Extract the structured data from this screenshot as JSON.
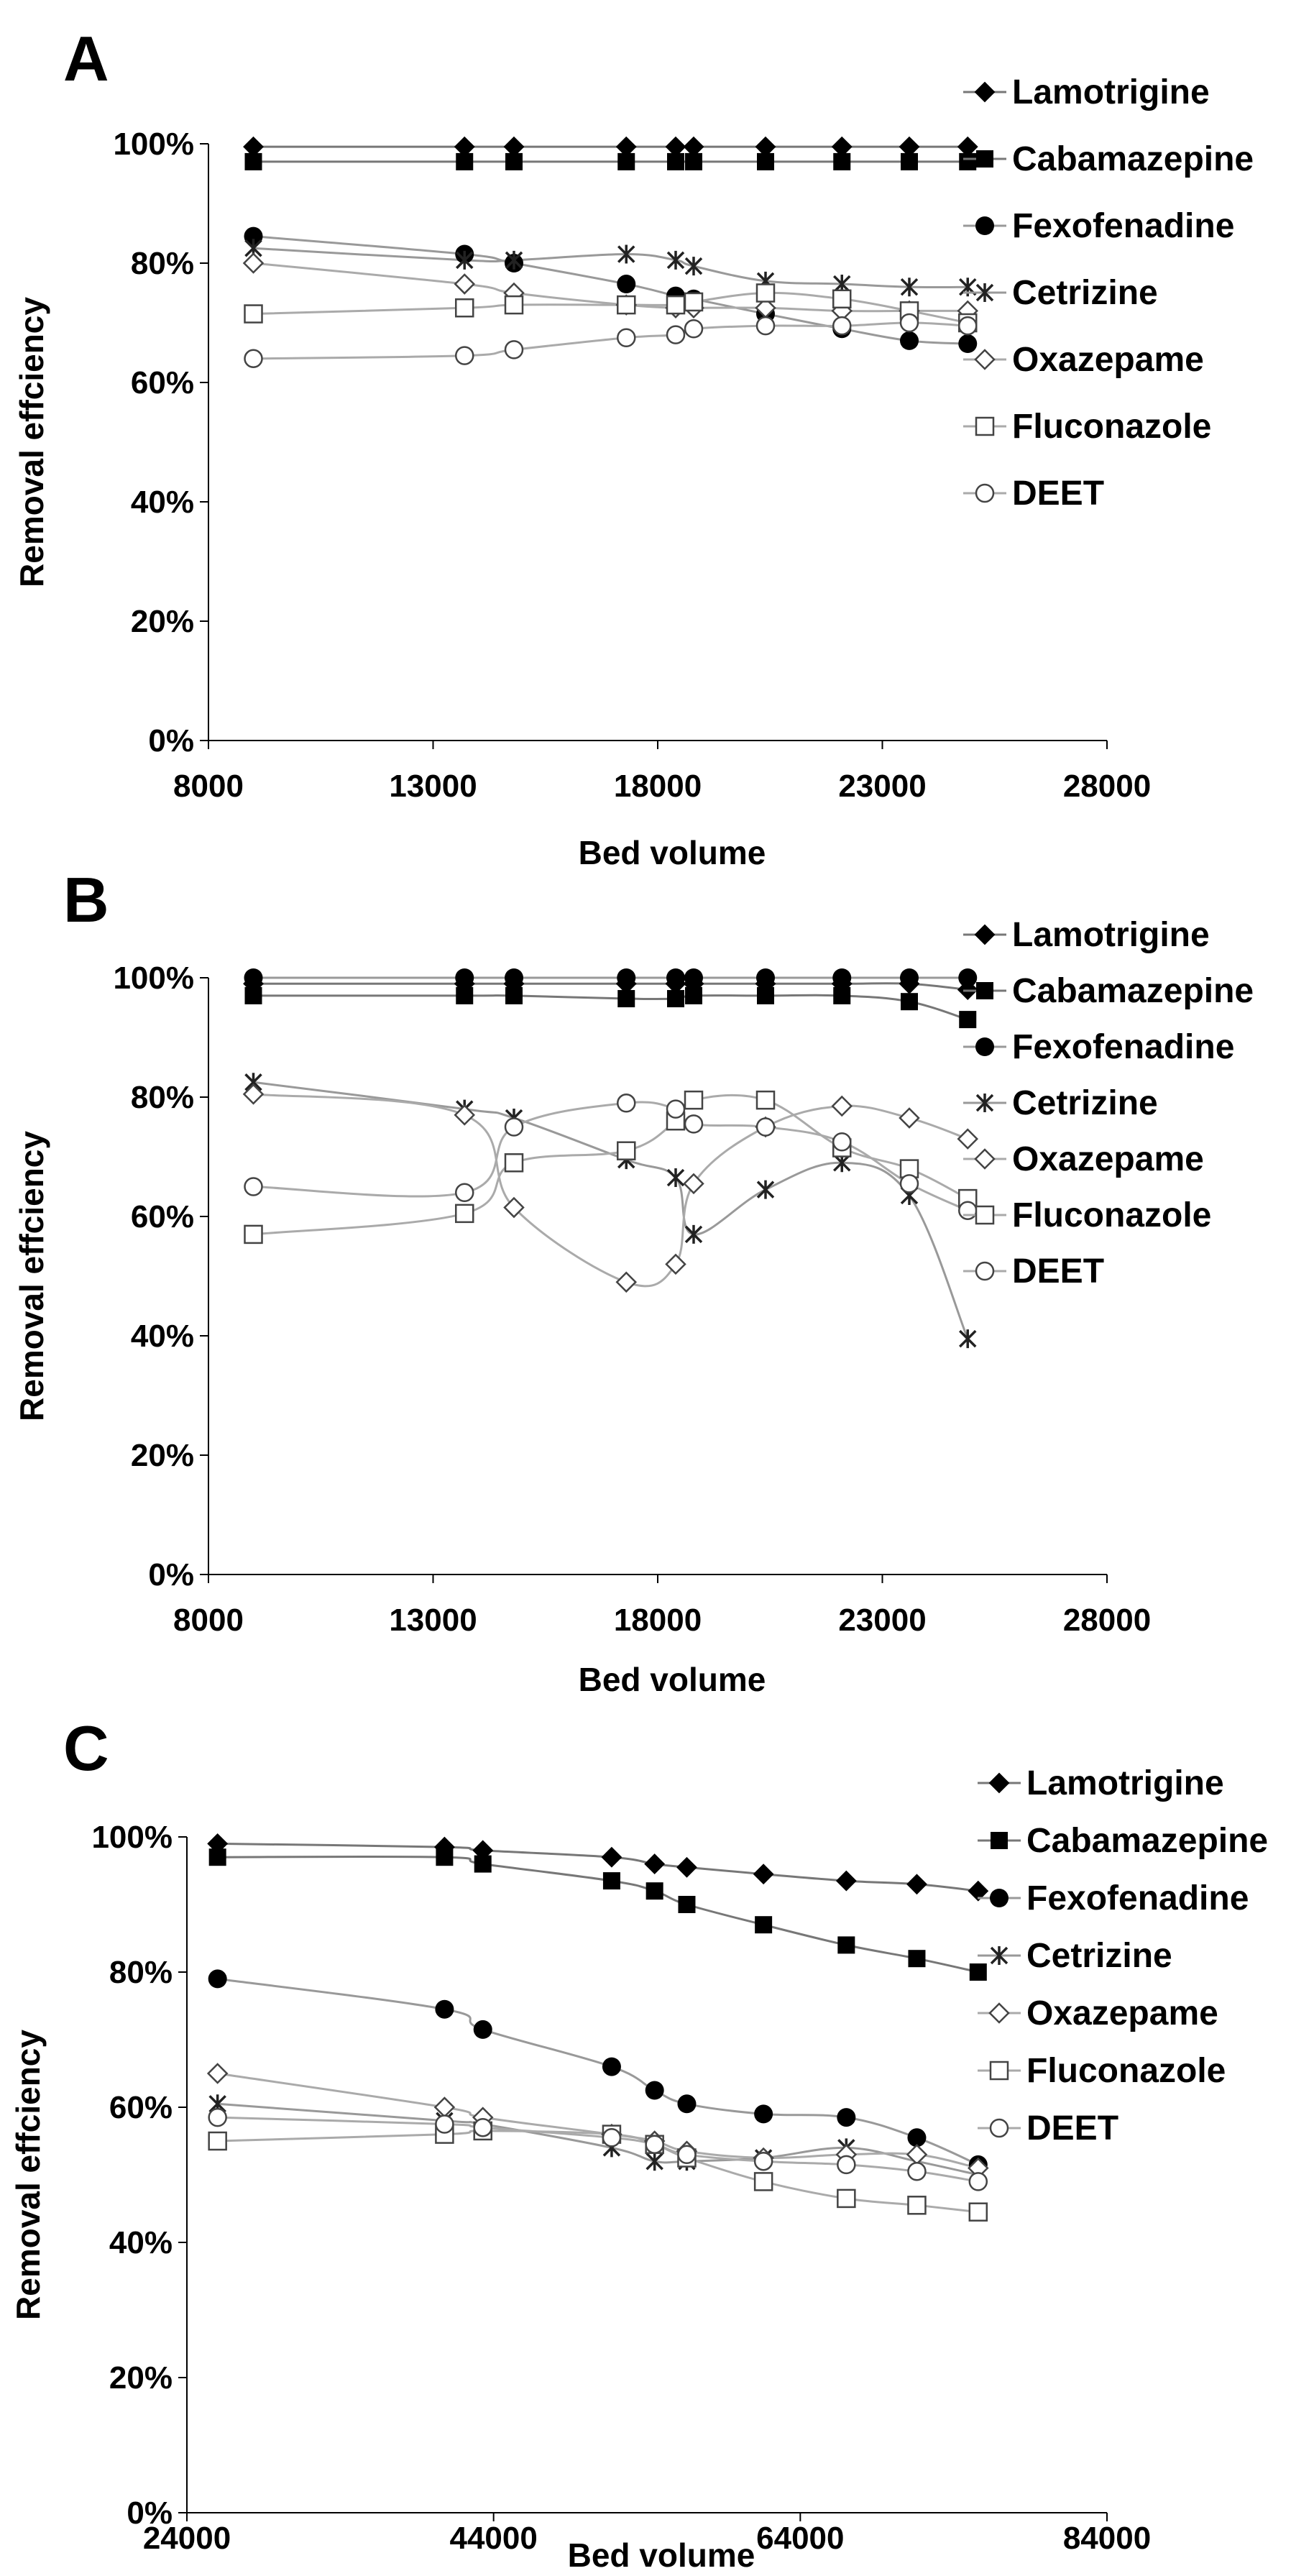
{
  "chart_data": [
    {
      "type": "line",
      "panel": "A",
      "xlabel": "Bed volume",
      "ylabel": "Removal effciency",
      "xlim": [
        8000,
        28000
      ],
      "ylim": [
        0,
        100
      ],
      "xticks": [
        8000,
        13000,
        18000,
        23000,
        28000
      ],
      "xtick_labels": [
        "8000",
        "13000",
        "18000",
        "23000",
        "28000"
      ],
      "yticks": [
        0,
        20,
        40,
        60,
        80,
        100
      ],
      "ytick_labels": [
        "0%",
        "20%",
        "40%",
        "60%",
        "80%",
        "100%"
      ],
      "x": [
        9000,
        13700,
        14800,
        17300,
        18400,
        18800,
        20400,
        22100,
        23600,
        24900
      ],
      "series": [
        {
          "name": "Lamotrigine",
          "marker": "diamond-filled",
          "color": "#777777",
          "values": [
            99.5,
            99.5,
            99.5,
            99.5,
            99.5,
            99.5,
            99.5,
            99.5,
            99.5,
            99.5
          ]
        },
        {
          "name": "Cabamazepine",
          "marker": "square-filled",
          "color": "#777777",
          "values": [
            97,
            97,
            97,
            97,
            97,
            97,
            97,
            97,
            97,
            97
          ]
        },
        {
          "name": "Fexofenadine",
          "marker": "circle-filled",
          "color": "#999999",
          "values": [
            84.5,
            81.5,
            80,
            76.5,
            74.5,
            74,
            71.5,
            69,
            67,
            66.5
          ]
        },
        {
          "name": "Cetrizine",
          "marker": "star",
          "color": "#999999",
          "values": [
            82.5,
            80.5,
            80.5,
            81.5,
            80.5,
            79.5,
            77,
            76.5,
            76,
            76
          ]
        },
        {
          "name": "Oxazepame",
          "marker": "diamond-open",
          "color": "#aaaaaa",
          "values": [
            80,
            76.5,
            75,
            73,
            72.5,
            72.5,
            72.5,
            72,
            72,
            72
          ]
        },
        {
          "name": "Fluconazole",
          "marker": "square-open",
          "color": "#aaaaaa",
          "values": [
            71.5,
            72.5,
            73,
            73,
            73,
            73.5,
            75,
            74,
            72,
            70
          ]
        },
        {
          "name": "DEET",
          "marker": "circle-open",
          "color": "#aaaaaa",
          "values": [
            64,
            64.5,
            65.5,
            67.5,
            68,
            69,
            69.5,
            69.5,
            70,
            69.5
          ]
        }
      ]
    },
    {
      "type": "line",
      "panel": "B",
      "xlabel": "Bed volume",
      "ylabel": "Removal effciency",
      "xlim": [
        8000,
        28000
      ],
      "ylim": [
        0,
        100
      ],
      "xticks": [
        8000,
        13000,
        18000,
        23000,
        28000
      ],
      "xtick_labels": [
        "8000",
        "13000",
        "18000",
        "23000",
        "28000"
      ],
      "yticks": [
        0,
        20,
        40,
        60,
        80,
        100
      ],
      "ytick_labels": [
        "0%",
        "20%",
        "40%",
        "60%",
        "80%",
        "100%"
      ],
      "x": [
        9000,
        13700,
        14800,
        17300,
        18400,
        18800,
        20400,
        22100,
        23600,
        24900
      ],
      "series": [
        {
          "name": "Lamotrigine",
          "marker": "diamond-filled",
          "color": "#777777",
          "values": [
            99,
            99,
            99,
            99,
            99,
            99,
            99,
            99,
            99,
            98
          ]
        },
        {
          "name": "Cabamazepine",
          "marker": "square-filled",
          "color": "#777777",
          "values": [
            97,
            97,
            97,
            96.5,
            96.5,
            97,
            97,
            97,
            96,
            93
          ]
        },
        {
          "name": "Fexofenadine",
          "marker": "circle-filled",
          "color": "#999999",
          "values": [
            100,
            100,
            100,
            100,
            100,
            100,
            100,
            100,
            100,
            100
          ]
        },
        {
          "name": "Cetrizine",
          "marker": "star",
          "color": "#999999",
          "values": [
            82.5,
            78,
            76.5,
            69.5,
            66.5,
            57,
            64.5,
            69,
            63.5,
            39.5
          ]
        },
        {
          "name": "Oxazepame",
          "marker": "diamond-open",
          "color": "#aaaaaa",
          "values": [
            80.5,
            77,
            61.5,
            49,
            52,
            65.5,
            75,
            78.5,
            76.5,
            73
          ]
        },
        {
          "name": "Fluconazole",
          "marker": "square-open",
          "color": "#aaaaaa",
          "values": [
            57,
            60.5,
            69,
            71,
            76,
            79.5,
            79.5,
            71.5,
            68,
            63
          ]
        },
        {
          "name": "DEET",
          "marker": "circle-open",
          "color": "#aaaaaa",
          "values": [
            65,
            64,
            75,
            79,
            78,
            75.5,
            75,
            72.5,
            65.5,
            61
          ]
        }
      ]
    },
    {
      "type": "line",
      "panel": "C",
      "xlabel": "Bed volume",
      "ylabel": "Removal effciency",
      "xlim": [
        24000,
        84000
      ],
      "ylim": [
        0,
        100
      ],
      "xticks": [
        24000,
        44000,
        64000,
        84000
      ],
      "xtick_labels": [
        "24000",
        "44000",
        "64000",
        "84000"
      ],
      "yticks": [
        0,
        20,
        40,
        60,
        80,
        100
      ],
      "ytick_labels": [
        "0%",
        "20%",
        "40%",
        "60%",
        "80%",
        "100%"
      ],
      "x": [
        26000,
        40800,
        43300,
        51700,
        54500,
        56600,
        61600,
        67000,
        71600,
        75600
      ],
      "series": [
        {
          "name": "Lamotrigine",
          "marker": "diamond-filled",
          "color": "#777777",
          "values": [
            99,
            98.5,
            98,
            97,
            96,
            95.5,
            94.5,
            93.5,
            93,
            92
          ]
        },
        {
          "name": "Cabamazepine",
          "marker": "square-filled",
          "color": "#777777",
          "values": [
            97,
            97,
            96,
            93.5,
            92,
            90,
            87,
            84,
            82,
            80
          ]
        },
        {
          "name": "Fexofenadine",
          "marker": "circle-filled",
          "color": "#999999",
          "values": [
            79,
            74.5,
            71.5,
            66,
            62.5,
            60.5,
            59,
            58.5,
            55.5,
            51.5
          ]
        },
        {
          "name": "Cetrizine",
          "marker": "star",
          "color": "#999999",
          "values": [
            60.5,
            58,
            57.5,
            54,
            52,
            52,
            52.5,
            54,
            52,
            50
          ]
        },
        {
          "name": "Oxazepame",
          "marker": "diamond-open",
          "color": "#aaaaaa",
          "values": [
            65,
            60,
            58.5,
            56,
            55,
            53.5,
            52.5,
            53,
            53,
            51
          ]
        },
        {
          "name": "Fluconazole",
          "marker": "square-open",
          "color": "#aaaaaa",
          "values": [
            55,
            56,
            56.5,
            56,
            54.5,
            52.5,
            49,
            46.5,
            45.5,
            44.5
          ]
        },
        {
          "name": "DEET",
          "marker": "circle-open",
          "color": "#aaaaaa",
          "values": [
            58.5,
            57.5,
            57,
            55.5,
            54.5,
            53,
            52,
            51.5,
            50.5,
            49
          ]
        }
      ]
    }
  ]
}
